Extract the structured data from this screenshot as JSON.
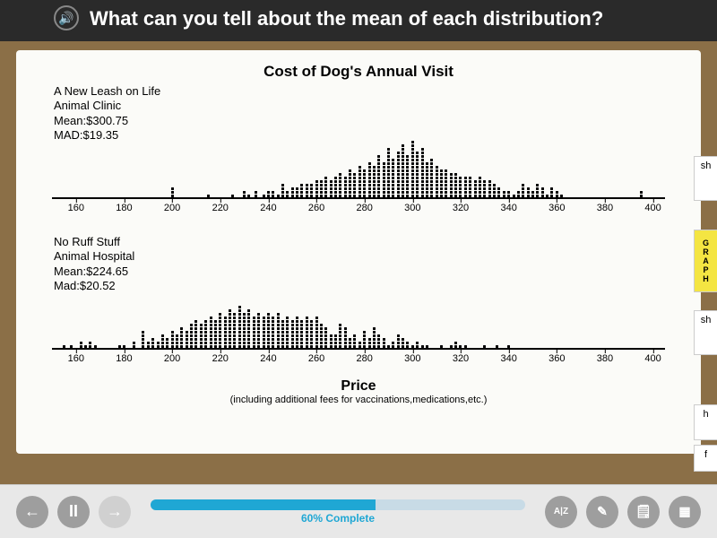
{
  "header": {
    "question": "What can you tell about the mean of each distribution?"
  },
  "chart": {
    "type": "dotplot",
    "title": "Cost of Dog's Annual Visit",
    "x_min": 150,
    "x_max": 405,
    "tick_start": 160,
    "tick_end": 400,
    "tick_step": 20,
    "axis_title": "Price",
    "axis_subtitle": "(including additional fees for vaccinations,medications,etc.)",
    "background_color": "#fbfbf8",
    "dot_color": "#000000",
    "label_fontsize": 13,
    "tick_fontsize": 11,
    "series": [
      {
        "name": "A New Leash on Life",
        "label_lines": [
          "A New Leash on Life",
          "Animal Clinic",
          "Mean:$300.75",
          "MAD:$19.35"
        ],
        "counts": {
          "160": 0,
          "165": 0,
          "170": 0,
          "175": 0,
          "180": 0,
          "185": 0,
          "190": 0,
          "195": 0,
          "200": 3,
          "205": 0,
          "210": 0,
          "215": 1,
          "220": 0,
          "225": 1,
          "230": 2,
          "232": 1,
          "235": 2,
          "238": 1,
          "240": 2,
          "242": 2,
          "244": 1,
          "246": 4,
          "248": 2,
          "250": 3,
          "252": 3,
          "254": 4,
          "256": 4,
          "258": 4,
          "260": 5,
          "262": 5,
          "264": 6,
          "266": 5,
          "268": 6,
          "270": 7,
          "272": 6,
          "274": 8,
          "276": 7,
          "278": 9,
          "280": 8,
          "282": 10,
          "284": 9,
          "286": 12,
          "288": 10,
          "290": 14,
          "292": 11,
          "294": 13,
          "296": 15,
          "298": 12,
          "300": 16,
          "302": 13,
          "304": 14,
          "306": 10,
          "308": 11,
          "310": 9,
          "312": 8,
          "314": 8,
          "316": 7,
          "318": 7,
          "320": 6,
          "322": 6,
          "324": 6,
          "326": 5,
          "328": 6,
          "330": 5,
          "332": 5,
          "334": 4,
          "336": 3,
          "338": 2,
          "340": 2,
          "342": 1,
          "344": 2,
          "346": 4,
          "348": 3,
          "350": 2,
          "352": 4,
          "354": 3,
          "356": 1,
          "358": 3,
          "360": 2,
          "362": 1,
          "365": 0,
          "370": 0,
          "375": 0,
          "380": 0,
          "385": 0,
          "390": 0,
          "395": 2,
          "400": 0
        }
      },
      {
        "name": "No Ruff Stuff",
        "label_lines": [
          "No Ruff Stuff",
          "Animal Hospital",
          "Mean:$224.65",
          "Mad:$20.52"
        ],
        "counts": {
          "155": 1,
          "158": 1,
          "160": 0,
          "162": 2,
          "164": 1,
          "166": 2,
          "168": 1,
          "170": 0,
          "172": 0,
          "175": 0,
          "178": 1,
          "180": 1,
          "182": 0,
          "184": 2,
          "186": 0,
          "188": 5,
          "190": 2,
          "192": 3,
          "194": 2,
          "196": 4,
          "198": 3,
          "200": 5,
          "202": 4,
          "204": 6,
          "206": 5,
          "208": 7,
          "210": 8,
          "212": 7,
          "214": 8,
          "216": 9,
          "218": 8,
          "220": 10,
          "222": 9,
          "224": 11,
          "226": 10,
          "228": 12,
          "230": 10,
          "232": 11,
          "234": 9,
          "236": 10,
          "238": 9,
          "240": 10,
          "242": 9,
          "244": 10,
          "246": 8,
          "248": 9,
          "250": 8,
          "252": 9,
          "254": 8,
          "256": 9,
          "258": 8,
          "260": 9,
          "262": 7,
          "264": 6,
          "266": 4,
          "268": 4,
          "270": 7,
          "272": 6,
          "274": 3,
          "276": 4,
          "278": 2,
          "280": 5,
          "282": 3,
          "284": 6,
          "286": 4,
          "288": 3,
          "290": 1,
          "292": 2,
          "294": 4,
          "296": 3,
          "298": 2,
          "300": 1,
          "302": 2,
          "304": 1,
          "306": 1,
          "308": 0,
          "310": 0,
          "312": 1,
          "314": 0,
          "316": 1,
          "318": 2,
          "320": 1,
          "322": 1,
          "325": 0,
          "330": 1,
          "335": 1,
          "340": 1,
          "345": 0,
          "350": 0
        }
      }
    ]
  },
  "side_tabs": {
    "graph": "GRAPH",
    "t1": "sh",
    "t2": "sh",
    "t3": "h",
    "t4": "f"
  },
  "footer": {
    "progress_pct": 60,
    "progress_label": "60% Complete",
    "buttons": {
      "back": "←",
      "pause": "II",
      "forward": "→",
      "az": "A|Z",
      "pencil": "✎",
      "notes": "🗒",
      "calc": "▦"
    }
  }
}
